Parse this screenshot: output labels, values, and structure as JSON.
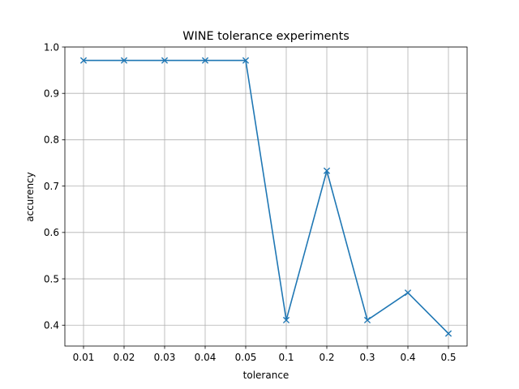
{
  "chart_data": {
    "type": "line",
    "title": "WINE tolerance experiments",
    "xlabel": "tolerance",
    "ylabel": "accurency",
    "categories": [
      "0.01",
      "0.02",
      "0.03",
      "0.04",
      "0.05",
      "0.1",
      "0.2",
      "0.3",
      "0.4",
      "0.5"
    ],
    "series": [
      {
        "values": [
          0.971,
          0.971,
          0.971,
          0.971,
          0.971,
          0.411,
          0.733,
          0.411,
          0.47,
          0.382
        ],
        "color": "#1f77b4",
        "marker": "x"
      }
    ],
    "ylim": [
      0.355,
      1.0
    ],
    "yticks": [
      0.4,
      0.5,
      0.6,
      0.7,
      0.8,
      0.9,
      1.0
    ],
    "ytick_labels": [
      "0.4",
      "0.5",
      "0.6",
      "0.7",
      "0.8",
      "0.9",
      "1.0"
    ],
    "grid": true,
    "legend": "none"
  }
}
